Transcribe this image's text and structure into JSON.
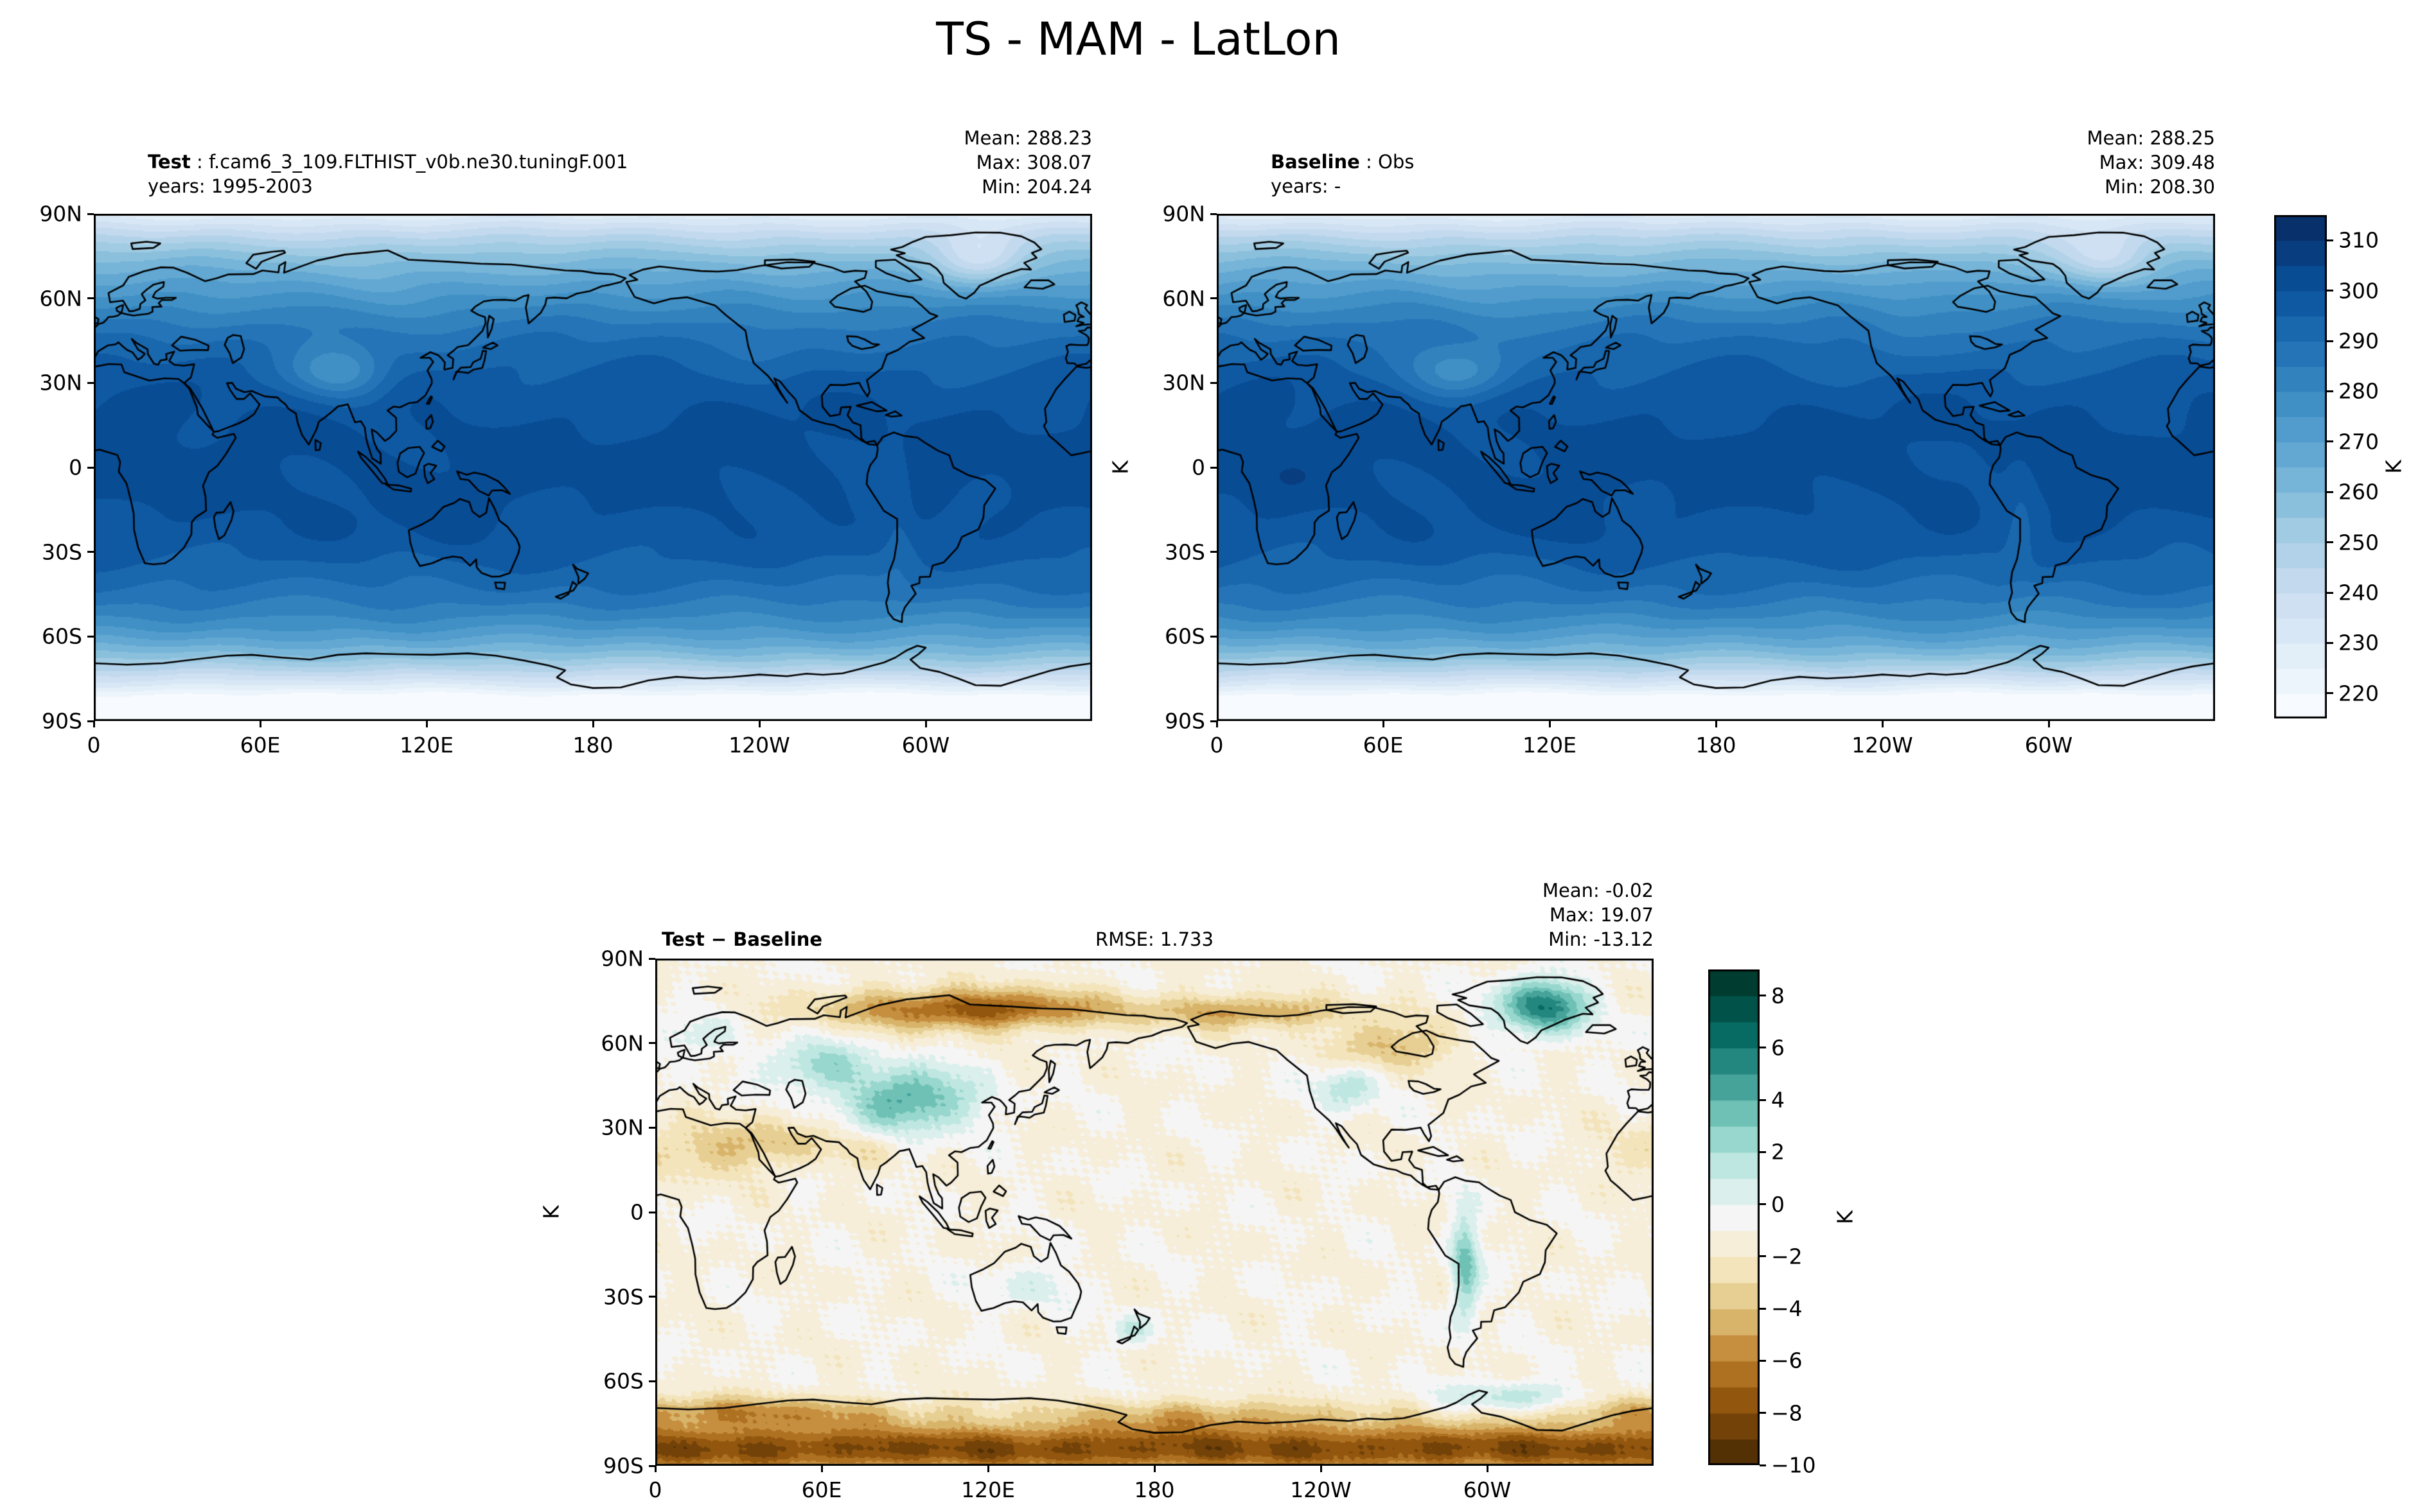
{
  "title": "TS - MAM - LatLon",
  "panels": {
    "test": {
      "label_bold": "Test",
      "label_rest": " : f.cam6_3_109.FLTHIST_v0b.ne30.tuningF.001",
      "years": "years: 1995-2003",
      "stats": [
        "Mean: 288.23",
        "Max: 308.07",
        "Min: 204.24"
      ]
    },
    "baseline": {
      "label_bold": "Baseline",
      "label_rest": " : Obs",
      "years": "years: -",
      "stats": [
        "Mean: 288.25",
        "Max: 309.48",
        "Min: 208.30"
      ]
    },
    "diff": {
      "label_bold": "Test − Baseline",
      "rmse": "RMSE: 1.733",
      "stats": [
        "Mean: -0.02",
        "Max: 19.07",
        "Min: -13.12"
      ]
    }
  },
  "axes": {
    "lon_ticks": [
      "0",
      "60E",
      "120E",
      "180",
      "120W",
      "60W"
    ],
    "lon_tick_values": [
      0,
      60,
      120,
      180,
      240,
      300
    ],
    "lat_ticks": [
      "90N",
      "60N",
      "30N",
      "0",
      "30S",
      "60S",
      "90S"
    ],
    "lat_tick_values": [
      90,
      60,
      30,
      0,
      -30,
      -60,
      -90
    ],
    "unit": "K"
  },
  "colorbars": {
    "temperature": {
      "unit": "K",
      "ticks": [
        310,
        300,
        290,
        280,
        270,
        260,
        250,
        240,
        230,
        220
      ],
      "vmin": 215,
      "vmax": 315,
      "colormap": "Blues"
    },
    "difference": {
      "unit": "K",
      "ticks": [
        8,
        6,
        4,
        2,
        0,
        -2,
        -4,
        -6,
        -8,
        -10
      ],
      "vmin": -10,
      "vmax": 9,
      "colormap": "BrBG"
    }
  },
  "chart_data": [
    {
      "type": "heatmap",
      "panel": "Test",
      "dataset": "f.cam6_3_109.FLTHIST_v0b.ne30.tuningF.001",
      "years": "1995-2003",
      "variable": "TS",
      "season": "MAM",
      "projection": "LatLon",
      "units": "K",
      "colormap": "Blues",
      "stats": {
        "mean": 288.23,
        "max": 308.07,
        "min": 204.24
      },
      "colorbar_levels": [
        220,
        230,
        240,
        250,
        260,
        270,
        280,
        290,
        300,
        310
      ],
      "x_ticks_deg": [
        0,
        60,
        120,
        180,
        240,
        300
      ],
      "y_ticks_deg": [
        90,
        60,
        30,
        0,
        -30,
        -60,
        -90
      ],
      "x_range": [
        0,
        360
      ],
      "y_range": [
        -90,
        90
      ]
    },
    {
      "type": "heatmap",
      "panel": "Baseline",
      "dataset": "Obs",
      "years": "-",
      "variable": "TS",
      "season": "MAM",
      "projection": "LatLon",
      "units": "K",
      "colormap": "Blues",
      "stats": {
        "mean": 288.25,
        "max": 309.48,
        "min": 208.3
      },
      "colorbar_levels": [
        220,
        230,
        240,
        250,
        260,
        270,
        280,
        290,
        300,
        310
      ],
      "x_ticks_deg": [
        0,
        60,
        120,
        180,
        240,
        300
      ],
      "y_ticks_deg": [
        90,
        60,
        30,
        0,
        -30,
        -60,
        -90
      ],
      "x_range": [
        0,
        360
      ],
      "y_range": [
        -90,
        90
      ]
    },
    {
      "type": "heatmap",
      "panel": "Test − Baseline",
      "variable": "TS difference",
      "season": "MAM",
      "projection": "LatLon",
      "units": "K",
      "colormap": "BrBG",
      "stats": {
        "mean": -0.02,
        "max": 19.07,
        "min": -13.12,
        "rmse": 1.733
      },
      "colorbar_levels": [
        -10,
        -8,
        -6,
        -4,
        -2,
        0,
        2,
        4,
        6,
        8
      ],
      "x_ticks_deg": [
        0,
        60,
        120,
        180,
        240,
        300
      ],
      "y_ticks_deg": [
        90,
        60,
        30,
        0,
        -30,
        -60,
        -90
      ],
      "x_range": [
        0,
        360
      ],
      "y_range": [
        -90,
        90
      ]
    }
  ]
}
